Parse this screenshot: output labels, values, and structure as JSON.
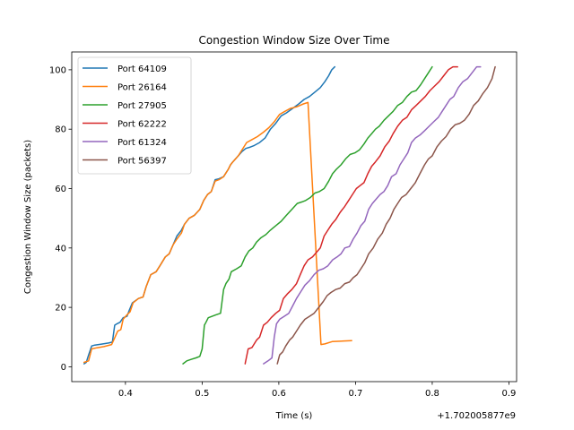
{
  "chart_data": {
    "type": "line",
    "title": "Congestion Window Size Over Time",
    "xlabel": "Time (s)",
    "ylabel": "Congestion Window Size (packets)",
    "x_offset_label": "+1.702005877e9",
    "xlim": [
      0.33,
      0.91
    ],
    "ylim": [
      -5,
      106
    ],
    "x_ticks": [
      0.4,
      0.5,
      0.6,
      0.7,
      0.8,
      0.9
    ],
    "x_tick_labels": [
      "0.4",
      "0.5",
      "0.6",
      "0.7",
      "0.8",
      "0.9"
    ],
    "y_ticks": [
      0,
      20,
      40,
      60,
      80,
      100
    ],
    "y_tick_labels": [
      "0",
      "20",
      "40",
      "60",
      "80",
      "100"
    ],
    "grid": false,
    "legend_position": "upper-left",
    "series": [
      {
        "name": "Port 64109",
        "color": "#1f77b4",
        "x": [
          0.346,
          0.349,
          0.352,
          0.356,
          0.36,
          0.368,
          0.378,
          0.383,
          0.386,
          0.389,
          0.393,
          0.397,
          0.402,
          0.405,
          0.409,
          0.417,
          0.423,
          0.427,
          0.433,
          0.44,
          0.445,
          0.452,
          0.457,
          0.462,
          0.467,
          0.473,
          0.477,
          0.483,
          0.49,
          0.497,
          0.502,
          0.507,
          0.512,
          0.517,
          0.522,
          0.528,
          0.534,
          0.537,
          0.54,
          0.547,
          0.552,
          0.557,
          0.563,
          0.568,
          0.575,
          0.582,
          0.589,
          0.596,
          0.603,
          0.61,
          0.618,
          0.626,
          0.633,
          0.64,
          0.647,
          0.654,
          0.66,
          0.665,
          0.669,
          0.673
        ],
        "y": [
          1,
          1.5,
          4,
          7,
          7.3,
          7.6,
          8,
          8.3,
          14,
          14.5,
          15,
          16.5,
          17,
          19,
          21.5,
          23,
          23.5,
          27,
          31,
          32,
          34,
          37,
          38,
          41,
          44,
          46,
          48,
          50,
          51,
          53,
          56,
          58,
          59,
          63,
          63.3,
          64,
          66.5,
          68,
          69,
          71,
          72.5,
          73.5,
          74,
          74.5,
          75.5,
          77,
          80,
          82,
          84.5,
          85.5,
          87,
          88.5,
          90,
          91,
          92.5,
          94,
          96,
          98,
          100,
          101
        ]
      },
      {
        "name": "Port 26164",
        "color": "#ff7f0e",
        "x": [
          0.346,
          0.352,
          0.356,
          0.363,
          0.372,
          0.382,
          0.39,
          0.394,
          0.397,
          0.402,
          0.406,
          0.41,
          0.417,
          0.423,
          0.427,
          0.433,
          0.44,
          0.445,
          0.452,
          0.457,
          0.462,
          0.467,
          0.473,
          0.477,
          0.483,
          0.49,
          0.497,
          0.502,
          0.507,
          0.512,
          0.517,
          0.522,
          0.528,
          0.534,
          0.537,
          0.54,
          0.547,
          0.552,
          0.558,
          0.565,
          0.572,
          0.58,
          0.587,
          0.594,
          0.601,
          0.608,
          0.615,
          0.623,
          0.632,
          0.638,
          0.655,
          0.66,
          0.67,
          0.68,
          0.695
        ],
        "y": [
          1.5,
          2,
          6,
          6.4,
          6.8,
          7.5,
          12,
          12.5,
          16,
          17.5,
          18.5,
          21.5,
          23,
          23.5,
          27,
          31,
          32,
          34,
          37,
          38,
          41,
          43,
          45,
          48,
          50,
          51,
          53,
          56,
          58,
          59,
          62.5,
          63,
          64,
          66.5,
          68,
          69,
          71,
          73,
          75.5,
          76.5,
          77.5,
          79,
          80.5,
          82.5,
          85,
          86,
          87,
          87.5,
          88.5,
          89,
          7.5,
          7.7,
          8.5,
          8.6,
          8.8
        ]
      },
      {
        "name": "Port 27905",
        "color": "#2ca02c",
        "x": [
          0.475,
          0.48,
          0.486,
          0.492,
          0.497,
          0.5,
          0.503,
          0.505,
          0.508,
          0.513,
          0.518,
          0.524,
          0.528,
          0.531,
          0.535,
          0.538,
          0.545,
          0.551,
          0.556,
          0.561,
          0.566,
          0.571,
          0.577,
          0.583,
          0.589,
          0.596,
          0.603,
          0.61,
          0.617,
          0.624,
          0.63,
          0.635,
          0.641,
          0.647,
          0.653,
          0.659,
          0.665,
          0.67,
          0.675,
          0.681,
          0.687,
          0.693,
          0.699,
          0.705,
          0.711,
          0.716,
          0.721,
          0.726,
          0.731,
          0.737,
          0.743,
          0.749,
          0.755,
          0.761,
          0.767,
          0.773,
          0.779,
          0.785,
          0.79,
          0.795,
          0.8
        ],
        "y": [
          1,
          2,
          2.5,
          3,
          3.5,
          6,
          14,
          15,
          16.5,
          17,
          17.5,
          18,
          26,
          28,
          29.5,
          32,
          33,
          34,
          37,
          39,
          40,
          42,
          43.5,
          44.5,
          46,
          47.5,
          49,
          51,
          53,
          55,
          55.5,
          56,
          57,
          58.5,
          59,
          60,
          62.5,
          65,
          66.5,
          68,
          70,
          71.5,
          72,
          73,
          75,
          77,
          78.5,
          80,
          81,
          83,
          84.5,
          86,
          88,
          89,
          91,
          92.5,
          93,
          95,
          97,
          99,
          101
        ]
      },
      {
        "name": "Port 62222",
        "color": "#d62728",
        "x": [
          0.556,
          0.56,
          0.565,
          0.571,
          0.575,
          0.58,
          0.585,
          0.59,
          0.596,
          0.601,
          0.606,
          0.611,
          0.617,
          0.623,
          0.628,
          0.633,
          0.638,
          0.644,
          0.649,
          0.654,
          0.659,
          0.664,
          0.669,
          0.674,
          0.68,
          0.686,
          0.691,
          0.696,
          0.701,
          0.706,
          0.711,
          0.716,
          0.721,
          0.726,
          0.732,
          0.738,
          0.744,
          0.749,
          0.755,
          0.761,
          0.767,
          0.773,
          0.779,
          0.785,
          0.791,
          0.797,
          0.803,
          0.809,
          0.815,
          0.821,
          0.827,
          0.833
        ],
        "y": [
          1,
          6,
          6.5,
          9,
          10,
          14,
          15,
          16.5,
          18,
          19,
          23,
          24.5,
          26,
          28,
          31,
          34,
          36,
          37,
          38.5,
          40,
          44,
          46,
          48,
          49.5,
          52,
          54,
          56,
          58,
          60,
          61,
          62,
          65,
          67.5,
          69,
          71,
          74,
          76,
          78.5,
          81,
          83,
          84,
          86.5,
          88,
          89.5,
          91,
          93,
          94.5,
          96,
          98,
          100,
          101,
          101
        ]
      },
      {
        "name": "Port 61324",
        "color": "#9467bd",
        "x": [
          0.58,
          0.586,
          0.591,
          0.594,
          0.597,
          0.601,
          0.607,
          0.613,
          0.618,
          0.623,
          0.628,
          0.634,
          0.64,
          0.646,
          0.652,
          0.658,
          0.664,
          0.67,
          0.676,
          0.681,
          0.686,
          0.692,
          0.697,
          0.702,
          0.707,
          0.712,
          0.717,
          0.722,
          0.727,
          0.732,
          0.737,
          0.742,
          0.747,
          0.753,
          0.758,
          0.763,
          0.768,
          0.773,
          0.778,
          0.784,
          0.79,
          0.796,
          0.802,
          0.808,
          0.813,
          0.818,
          0.823,
          0.828,
          0.834,
          0.84,
          0.846,
          0.852,
          0.858,
          0.863
        ],
        "y": [
          1,
          2,
          3,
          10,
          14.5,
          16,
          17,
          18,
          20.5,
          23,
          25,
          27.5,
          29,
          31,
          32.5,
          33,
          34,
          36,
          37,
          38,
          40,
          40.5,
          43,
          45,
          47.5,
          49,
          53,
          55,
          56.5,
          58,
          59,
          61,
          64,
          65,
          68,
          70,
          72,
          75.5,
          77,
          78,
          79.5,
          81,
          82.5,
          84,
          86,
          88,
          90,
          91,
          94,
          96,
          97,
          99,
          101,
          101
        ]
      },
      {
        "name": "Port 56397",
        "color": "#8c564b",
        "x": [
          0.598,
          0.601,
          0.605,
          0.609,
          0.614,
          0.618,
          0.623,
          0.628,
          0.634,
          0.64,
          0.646,
          0.652,
          0.658,
          0.663,
          0.668,
          0.674,
          0.68,
          0.686,
          0.692,
          0.697,
          0.702,
          0.707,
          0.712,
          0.717,
          0.723,
          0.729,
          0.735,
          0.74,
          0.745,
          0.75,
          0.755,
          0.76,
          0.766,
          0.772,
          0.778,
          0.784,
          0.79,
          0.795,
          0.8,
          0.806,
          0.812,
          0.818,
          0.824,
          0.83,
          0.836,
          0.842,
          0.848,
          0.854,
          0.86,
          0.866,
          0.872,
          0.878,
          0.882
        ],
        "y": [
          1,
          4,
          5,
          7,
          9,
          10,
          12,
          14,
          16,
          17,
          18,
          20,
          22,
          24,
          25,
          26,
          26.5,
          28,
          28.5,
          30,
          31,
          33,
          35,
          38,
          40,
          43,
          45,
          48,
          50,
          53,
          55,
          57,
          58,
          60,
          62,
          65,
          68,
          70,
          71,
          74,
          76,
          77.5,
          80,
          81.5,
          82,
          83,
          85,
          88,
          89.5,
          92,
          94,
          97,
          101
        ]
      }
    ]
  }
}
